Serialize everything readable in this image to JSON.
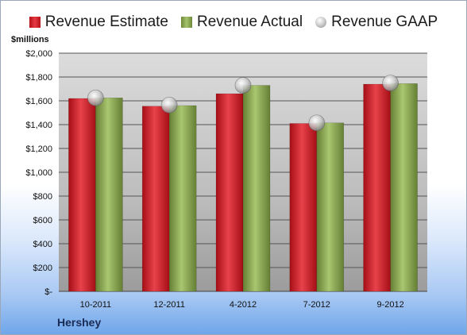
{
  "legend": {
    "estimate": "Revenue Estimate",
    "actual": "Revenue Actual",
    "gaap": "Revenue GAAP"
  },
  "unit_label": "$millions",
  "company": "Hershey",
  "colors": {
    "estimate": "#c81d25",
    "actual": "#8fb25a",
    "gaap": "#c8c8c8"
  },
  "chart_data": {
    "type": "bar",
    "categories": [
      "10-2011",
      "12-2011",
      "4-2012",
      "7-2012",
      "9-2012"
    ],
    "series": [
      {
        "name": "Revenue Estimate",
        "values": [
          1620,
          1555,
          1660,
          1410,
          1740
        ]
      },
      {
        "name": "Revenue Actual",
        "values": [
          1625,
          1560,
          1730,
          1415,
          1745
        ]
      },
      {
        "name": "Revenue GAAP",
        "values": [
          1625,
          1565,
          1730,
          1415,
          1750
        ]
      }
    ],
    "ylabel": "$millions",
    "ylim": [
      0,
      2000
    ],
    "yticks": [
      0,
      200,
      400,
      600,
      800,
      1000,
      1200,
      1400,
      1600,
      1800,
      2000
    ],
    "ytick_labels": [
      "$-",
      "$200",
      "$400",
      "$600",
      "$800",
      "$1,000",
      "$1,200",
      "$1,400",
      "$1,600",
      "$1,800",
      "$2,000"
    ],
    "grid": true,
    "legend_position": "top"
  }
}
